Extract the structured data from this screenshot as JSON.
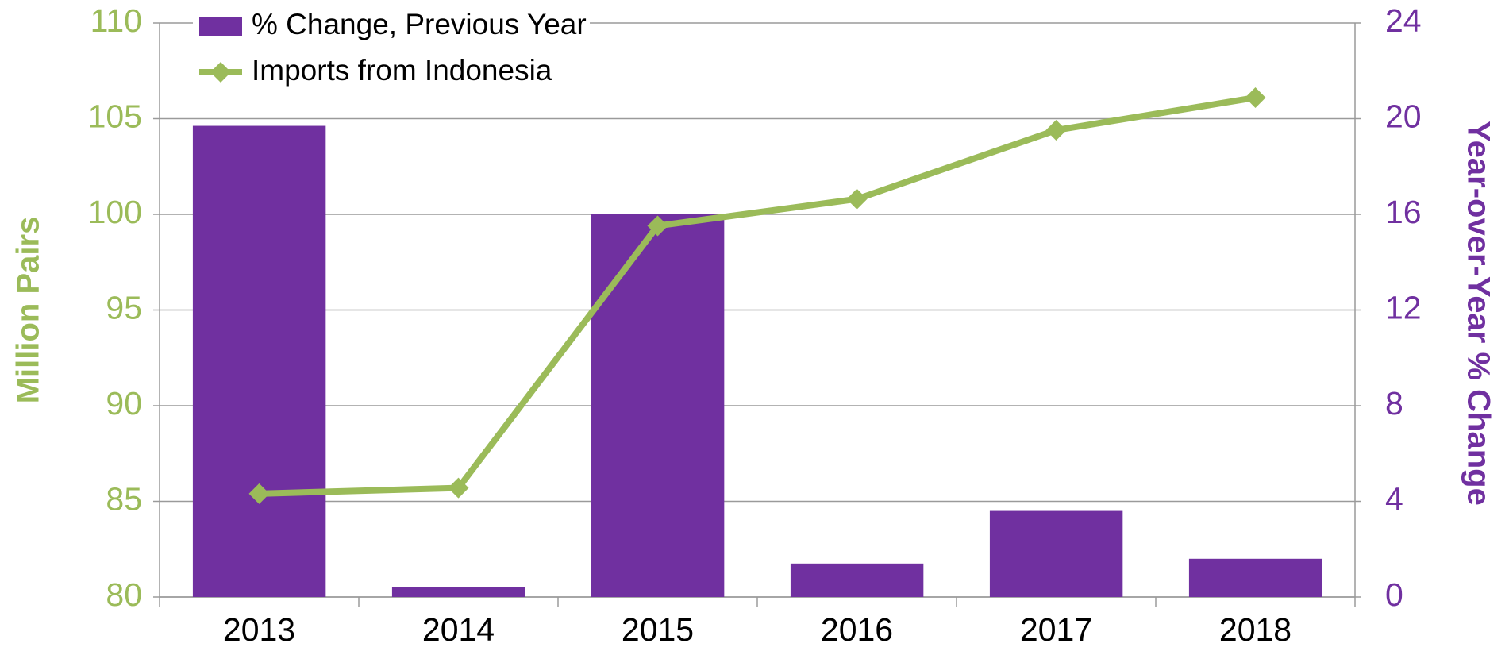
{
  "chart_data": {
    "type": "bar-line",
    "categories": [
      "2013",
      "2014",
      "2015",
      "2016",
      "2017",
      "2018"
    ],
    "series": [
      {
        "name": "% Change, Previous Year",
        "type": "bar",
        "color": "#7030a0",
        "axis": "y2",
        "values": [
          19.7,
          0.4,
          16.0,
          1.4,
          3.6,
          1.6
        ]
      },
      {
        "name": "Imports from Indonesia",
        "type": "line",
        "color": "#9bbb59",
        "axis": "y",
        "values": [
          85.4,
          85.7,
          99.4,
          100.8,
          104.4,
          106.1
        ]
      }
    ],
    "ylabel": "Million Pairs",
    "y2label": "Year-over-Year % Change",
    "ylim": [
      80,
      110
    ],
    "yticks": [
      80,
      85,
      90,
      95,
      100,
      105,
      110
    ],
    "y2lim": [
      0,
      24
    ],
    "y2ticks": [
      0,
      4,
      8,
      12,
      16,
      20,
      24
    ],
    "grid": true,
    "legend": "upper left"
  }
}
